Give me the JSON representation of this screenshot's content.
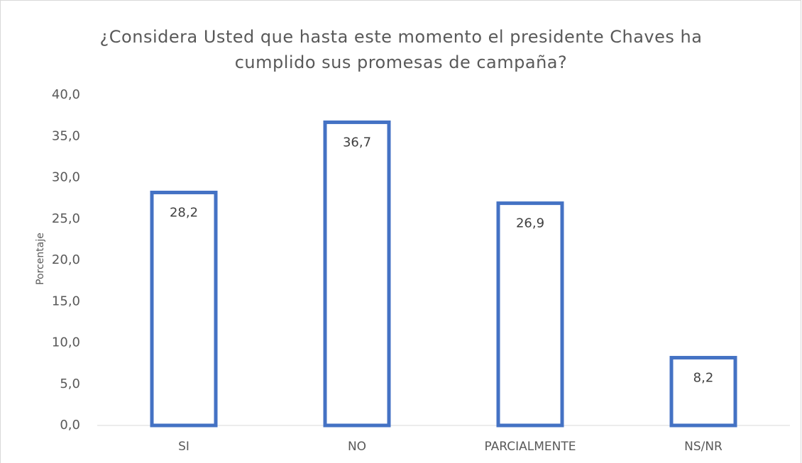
{
  "chart_data": {
    "type": "bar",
    "title": "¿Considera Usted que hasta este momento el presidente Chaves ha cumplido sus promesas de campaña?",
    "y_label": "Porcentaje",
    "categories": [
      "SI",
      "NO",
      "PARCIALMENTE",
      "NS/NR"
    ],
    "values": [
      28.2,
      36.7,
      26.9,
      8.2
    ],
    "value_labels": [
      "28,2",
      "36,7",
      "26,9",
      "8,2"
    ],
    "color": "#4472c4",
    "ylim": [
      0,
      40
    ],
    "yticks": [
      {
        "value": 0,
        "label": "0,0"
      },
      {
        "value": 5,
        "label": "5,0"
      },
      {
        "value": 10,
        "label": "10,0"
      },
      {
        "value": 15,
        "label": "15,0"
      },
      {
        "value": 20,
        "label": "20,0"
      },
      {
        "value": 25,
        "label": "25,0"
      },
      {
        "value": 30,
        "label": "30,0"
      },
      {
        "value": 35,
        "label": "35,0"
      },
      {
        "value": 40,
        "label": "40,0"
      }
    ],
    "grid": false
  }
}
